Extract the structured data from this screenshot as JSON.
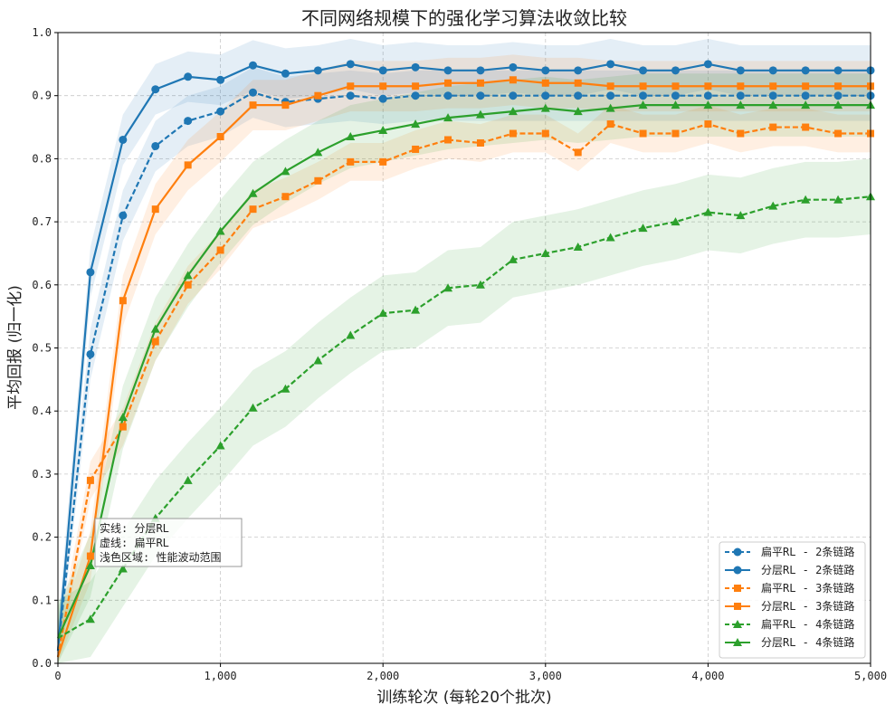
{
  "chart_data": {
    "type": "line",
    "title": "不同网络规模下的强化学习算法收敛比较",
    "xlabel": "训练轮次 (每轮20个批次)",
    "ylabel": "平均回报 (归一化)",
    "xlim": [
      0,
      5000
    ],
    "ylim": [
      0,
      1.0
    ],
    "xticks": [
      0,
      1000,
      2000,
      3000,
      4000,
      5000
    ],
    "xtick_labels": [
      "0",
      "1,000",
      "2,000",
      "3,000",
      "4,000",
      "5,000"
    ],
    "yticks": [
      0,
      0.1,
      0.2,
      0.3,
      0.4,
      0.5,
      0.6,
      0.7,
      0.8,
      0.9,
      1.0
    ],
    "ytick_labels": [
      "0.0",
      "0.1",
      "0.2",
      "0.3",
      "0.4",
      "0.5",
      "0.6",
      "0.7",
      "0.8",
      "0.9",
      "1.0"
    ],
    "grid": true,
    "legend_position": "lower-right",
    "annotation_lines": [
      "实线: 分层RL",
      "虚线: 扁平RL",
      "浅色区域: 性能波动范围"
    ],
    "x": [
      0,
      200,
      400,
      600,
      800,
      1000,
      1200,
      1400,
      1600,
      1800,
      2000,
      2200,
      2400,
      2600,
      2800,
      3000,
      3200,
      3400,
      3600,
      3800,
      4000,
      4200,
      4400,
      4600,
      4800,
      5000
    ],
    "series": [
      {
        "name": "扁平RL - 2条链路",
        "color": "#1f77b4",
        "dashed": true,
        "marker": "circle",
        "band": 0.04,
        "values": [
          0.02,
          0.49,
          0.71,
          0.82,
          0.86,
          0.875,
          0.905,
          0.89,
          0.895,
          0.9,
          0.895,
          0.9,
          0.9,
          0.9,
          0.9,
          0.9,
          0.9,
          0.9,
          0.9,
          0.9,
          0.9,
          0.9,
          0.9,
          0.9,
          0.9,
          0.9
        ]
      },
      {
        "name": "分层RL - 2条链路",
        "color": "#1f77b4",
        "dashed": false,
        "marker": "circle",
        "band": 0.04,
        "values": [
          0.02,
          0.62,
          0.83,
          0.91,
          0.93,
          0.925,
          0.948,
          0.935,
          0.94,
          0.95,
          0.94,
          0.945,
          0.94,
          0.94,
          0.945,
          0.94,
          0.94,
          0.95,
          0.94,
          0.94,
          0.95,
          0.94,
          0.94,
          0.94,
          0.94,
          0.94
        ]
      },
      {
        "name": "扁平RL - 3条链路",
        "color": "#ff7f0e",
        "dashed": true,
        "marker": "square",
        "band": 0.03,
        "values": [
          0.01,
          0.29,
          0.375,
          0.51,
          0.6,
          0.655,
          0.72,
          0.74,
          0.765,
          0.795,
          0.795,
          0.815,
          0.83,
          0.825,
          0.84,
          0.84,
          0.81,
          0.855,
          0.84,
          0.84,
          0.855,
          0.84,
          0.85,
          0.85,
          0.84,
          0.84
        ]
      },
      {
        "name": "分层RL - 3条链路",
        "color": "#ff7f0e",
        "dashed": false,
        "marker": "square",
        "band": 0.04,
        "values": [
          0.01,
          0.17,
          0.575,
          0.72,
          0.79,
          0.835,
          0.885,
          0.885,
          0.9,
          0.915,
          0.915,
          0.915,
          0.92,
          0.92,
          0.925,
          0.92,
          0.92,
          0.915,
          0.915,
          0.915,
          0.915,
          0.915,
          0.915,
          0.915,
          0.915,
          0.915
        ]
      },
      {
        "name": "扁平RL - 4条链路",
        "color": "#2ca02c",
        "dashed": true,
        "marker": "triangle",
        "band": 0.06,
        "values": [
          0.04,
          0.07,
          0.15,
          0.23,
          0.29,
          0.345,
          0.405,
          0.435,
          0.48,
          0.52,
          0.555,
          0.56,
          0.595,
          0.6,
          0.64,
          0.65,
          0.66,
          0.675,
          0.69,
          0.7,
          0.715,
          0.71,
          0.725,
          0.735,
          0.735,
          0.74
        ]
      },
      {
        "name": "分层RL - 4条链路",
        "color": "#2ca02c",
        "dashed": false,
        "marker": "triangle",
        "band": 0.05,
        "values": [
          0.04,
          0.155,
          0.39,
          0.53,
          0.615,
          0.685,
          0.745,
          0.78,
          0.81,
          0.835,
          0.845,
          0.855,
          0.865,
          0.87,
          0.875,
          0.88,
          0.875,
          0.88,
          0.885,
          0.885,
          0.885,
          0.885,
          0.885,
          0.885,
          0.885,
          0.885
        ]
      }
    ]
  }
}
